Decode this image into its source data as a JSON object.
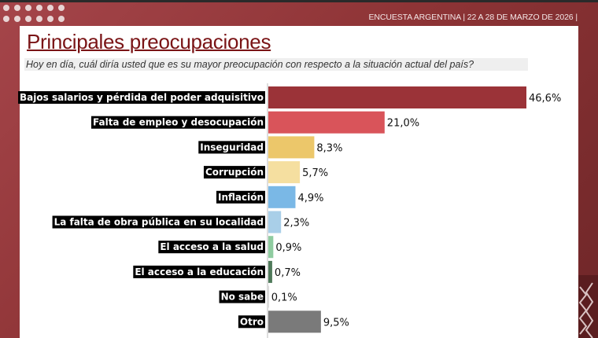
{
  "header": {
    "survey": "ENCUESTA ARGENTINA | 22 A 28 DE MARZO DE 2026  |"
  },
  "title": "Principales preocupaciones",
  "subtitle": "Hoy en día, cuál diría usted que es su mayor preocupación con respecto a la situación actual del país?",
  "chart_data": {
    "type": "bar",
    "orientation": "horizontal",
    "categories": [
      "Bajos salarios y pérdida del poder adquisitivo",
      "Falta de empleo y desocupación",
      "Inseguridad",
      "Corrupción",
      "Inflación",
      "La falta de obra pública en su localidad",
      "El acceso a la salud",
      "El acceso a la educación",
      "No sabe",
      "Otro"
    ],
    "values": [
      46.6,
      21.0,
      8.3,
      5.7,
      4.9,
      2.3,
      0.9,
      0.7,
      0.1,
      9.5
    ],
    "labels": [
      "46,6%",
      "21,0%",
      "8,3%",
      "5,7%",
      "4,9%",
      "2,3%",
      "0,9%",
      "0,7%",
      "0,1%",
      "9,5%"
    ],
    "colors": [
      "#9b3338",
      "#d9545a",
      "#ecc76a",
      "#f5dfa0",
      "#7ab8e6",
      "#a9cfe8",
      "#8fcca0",
      "#4f7a5a",
      "#cccccc",
      "#7a7a7a"
    ],
    "xlim": [
      0,
      50
    ],
    "grid": false
  }
}
